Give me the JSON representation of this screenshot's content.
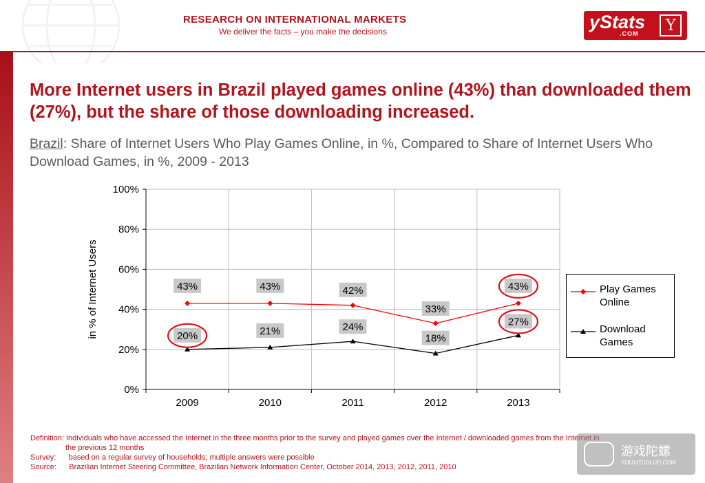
{
  "header": {
    "title": "RESEARCH ON INTERNATIONAL MARKETS",
    "tagline": "We deliver the facts – you make the decisions",
    "logo": {
      "text": "yStats",
      "sub": ".COM",
      "mark": "Y"
    }
  },
  "slide": {
    "title": "More Internet users in Brazil played games online (43%) than downloaded them (27%), but the share of those downloading increased.",
    "subtitle_country": "Brazil",
    "subtitle_rest": ": Share of Internet Users Who Play Games Online, in %, Compared to Share of Internet Users Who Download Games, in %, 2009 - 2013"
  },
  "chart_data": {
    "type": "line",
    "x": [
      "2009",
      "2010",
      "2011",
      "2012",
      "2013"
    ],
    "ylabel": "in % of Internet Users",
    "ylim": [
      0,
      100
    ],
    "yticks": [
      "0%",
      "20%",
      "40%",
      "60%",
      "80%",
      "100%"
    ],
    "grid": true,
    "legend_position": "right",
    "series": [
      {
        "name": "Play Games Online",
        "values": [
          43,
          43,
          42,
          33,
          43
        ],
        "labels": [
          "43%",
          "43%",
          "42%",
          "33%",
          "43%"
        ],
        "color": "#ff0000",
        "marker": "diamond"
      },
      {
        "name": "Download Games",
        "values": [
          20,
          21,
          24,
          18,
          27
        ],
        "labels": [
          "20%",
          "21%",
          "24%",
          "18%",
          "27%"
        ],
        "color": "#000000",
        "marker": "triangle"
      }
    ],
    "highlight_circles": [
      "Download Games 2009",
      "Play Games Online 2013",
      "Download Games 2013"
    ]
  },
  "footnotes": {
    "definition_label": "Definition:",
    "definition_text": "Individuals who have accessed the Internet in the three months prior to the survey and played games over the Internet / downloaded games from the Internet in",
    "definition_cont": "the previous 12 months",
    "survey_label": "Survey:",
    "survey_text": "based on a regular survey of households; multiple answers were possible",
    "source_label": "Source:",
    "source_text": "Brazilian Internet Steering Committee, Brazilian Network Information Center, October 2014, 2013, 2012, 2011, 2010"
  },
  "watermark": {
    "text": "游戏陀螺",
    "url": "YOUXITUOLUO.COM"
  }
}
